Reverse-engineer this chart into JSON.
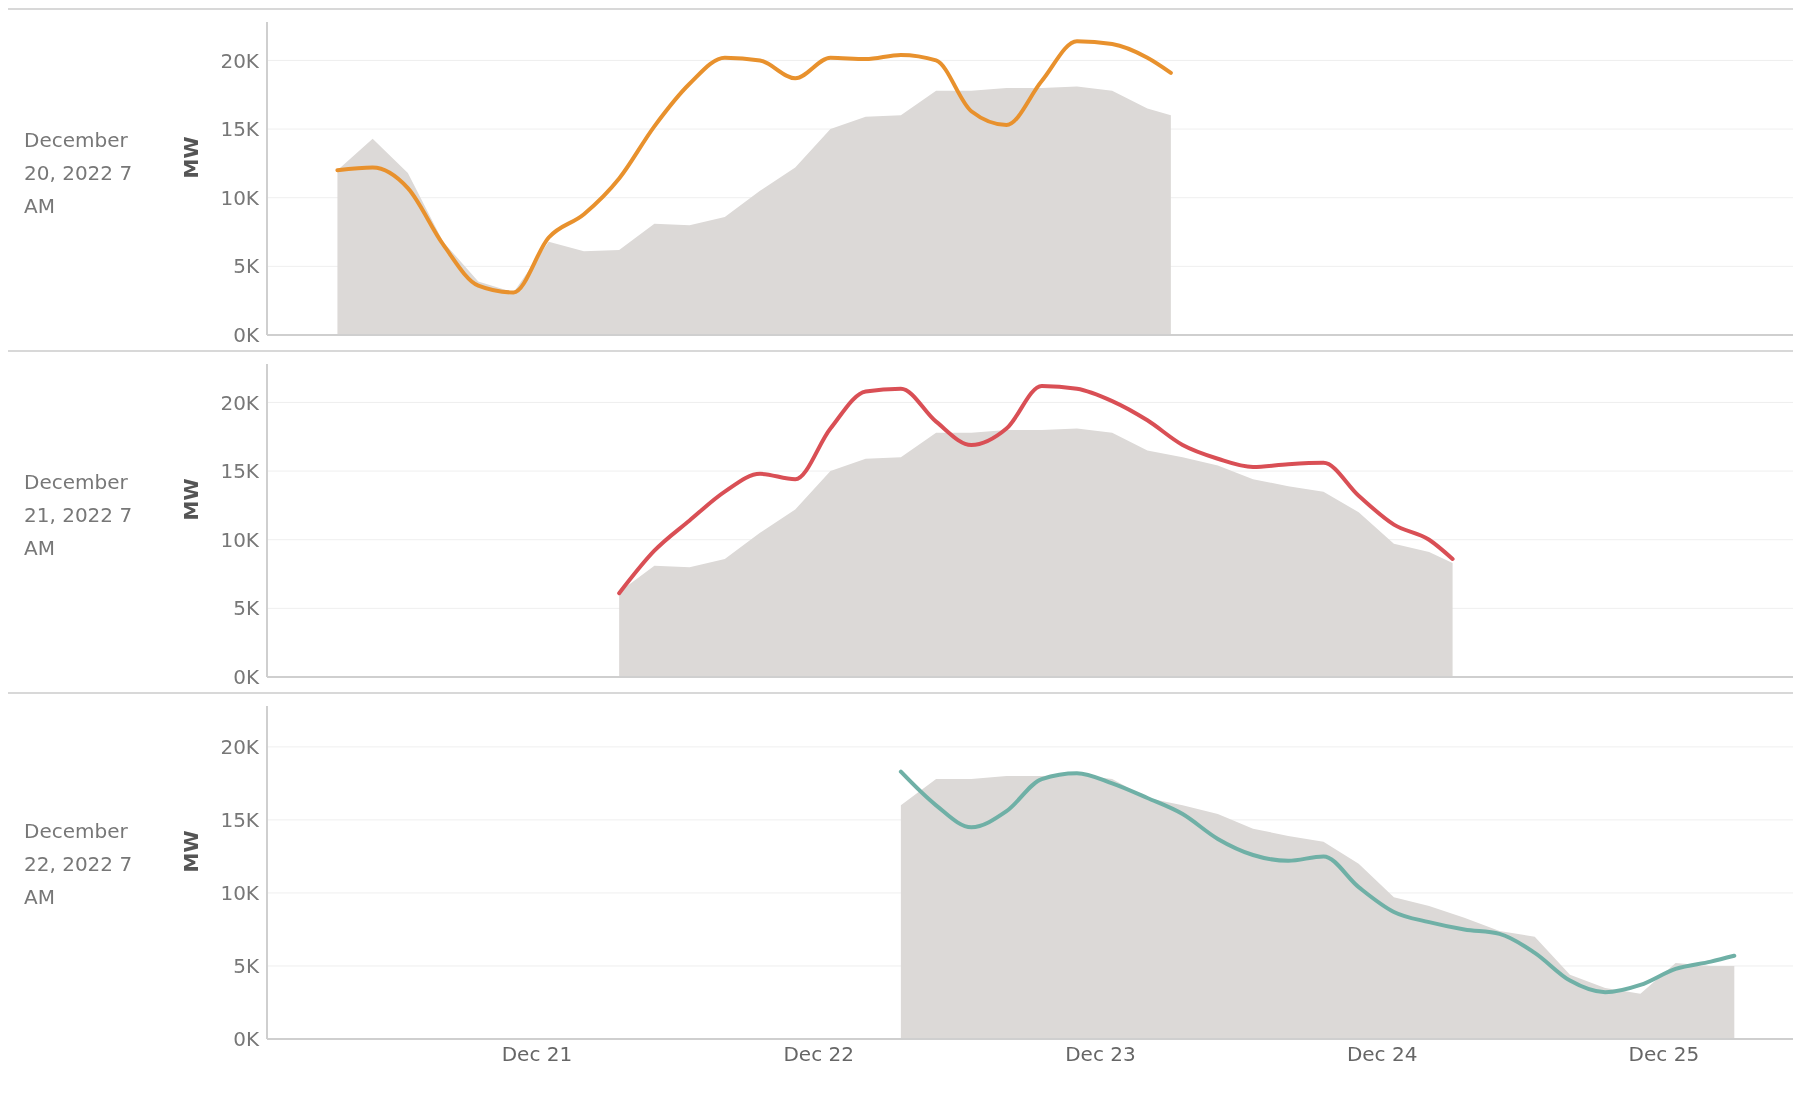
{
  "chart_data": [
    {
      "type": "line",
      "title": "December 20, 2022 7 AM",
      "ylabel": "MW",
      "grid": "y",
      "tick_labels": "y",
      "line_style": "solid",
      "marker": "none",
      "x": [
        "2022-12-20T07:00",
        "2022-12-20T10:00",
        "2022-12-20T13:00",
        "2022-12-20T16:00",
        "2022-12-20T19:00",
        "2022-12-20T22:00",
        "2022-12-21T01:00",
        "2022-12-21T04:00",
        "2022-12-21T07:00",
        "2022-12-21T10:00",
        "2022-12-21T13:00",
        "2022-12-21T16:00",
        "2022-12-21T19:00",
        "2022-12-21T22:00",
        "2022-12-22T01:00",
        "2022-12-22T04:00",
        "2022-12-22T07:00",
        "2022-12-22T10:00",
        "2022-12-22T13:00",
        "2022-12-22T16:00",
        "2022-12-22T19:00",
        "2022-12-22T22:00",
        "2022-12-23T01:00",
        "2022-12-23T04:00",
        "2022-12-23T06:00"
      ],
      "series": [
        {
          "type": "area",
          "color": "#dcd9d7",
          "values": [
            12000,
            14300,
            11800,
            6800,
            3900,
            3100,
            6800,
            6100,
            6200,
            8100,
            8000,
            8600,
            10500,
            12200,
            15000,
            15900,
            16000,
            17800,
            17800,
            18000,
            18000,
            18100,
            17800,
            16500,
            16000
          ]
        },
        {
          "type": "line",
          "color": "#e8912d",
          "values": [
            12000,
            12200,
            10700,
            6600,
            3600,
            3100,
            7100,
            8800,
            11400,
            15200,
            18300,
            20200,
            20000,
            18700,
            20200,
            20100,
            20400,
            20000,
            16300,
            15300,
            18500,
            21400,
            21200,
            20200,
            19100
          ]
        }
      ],
      "xlim": [
        "2022-12-20T01:00",
        "2022-12-25T11:00"
      ],
      "ylim": [
        0,
        22800
      ],
      "yticks": [
        {
          "value": 0,
          "label": "0K"
        },
        {
          "value": 5000,
          "label": "5K"
        },
        {
          "value": 10000,
          "label": "10K"
        },
        {
          "value": 15000,
          "label": "15K"
        },
        {
          "value": 20000,
          "label": "20K"
        }
      ]
    },
    {
      "type": "line",
      "title": "December 21, 2022 7 AM",
      "ylabel": "MW",
      "grid": "y",
      "tick_labels": "y",
      "line_style": "solid",
      "marker": "none",
      "x": [
        "2022-12-21T07:00",
        "2022-12-21T10:00",
        "2022-12-21T13:00",
        "2022-12-21T16:00",
        "2022-12-21T19:00",
        "2022-12-21T22:00",
        "2022-12-22T01:00",
        "2022-12-22T04:00",
        "2022-12-22T07:00",
        "2022-12-22T10:00",
        "2022-12-22T13:00",
        "2022-12-22T16:00",
        "2022-12-22T19:00",
        "2022-12-22T22:00",
        "2022-12-23T01:00",
        "2022-12-23T04:00",
        "2022-12-23T07:00",
        "2022-12-23T10:00",
        "2022-12-23T13:00",
        "2022-12-23T16:00",
        "2022-12-23T19:00",
        "2022-12-23T22:00",
        "2022-12-24T01:00",
        "2022-12-24T04:00",
        "2022-12-24T06:00"
      ],
      "series": [
        {
          "type": "area",
          "color": "#dcd9d7",
          "values": [
            6200,
            8100,
            8000,
            8600,
            10500,
            12200,
            15000,
            15900,
            16000,
            17800,
            17800,
            18000,
            18000,
            18100,
            17800,
            16500,
            16000,
            15400,
            14400,
            13900,
            13500,
            12000,
            9700,
            9100,
            8300
          ]
        },
        {
          "type": "line",
          "color": "#d94f55",
          "values": [
            6100,
            9200,
            11400,
            13500,
            14800,
            14400,
            18100,
            20800,
            21000,
            18600,
            16900,
            18100,
            21200,
            21000,
            20100,
            18700,
            16900,
            15900,
            15300,
            15500,
            15600,
            13200,
            11100,
            10000,
            8600
          ]
        }
      ],
      "xlim": [
        "2022-12-20T01:00",
        "2022-12-25T11:00"
      ],
      "ylim": [
        0,
        22800
      ],
      "yticks": [
        {
          "value": 0,
          "label": "0K"
        },
        {
          "value": 5000,
          "label": "5K"
        },
        {
          "value": 10000,
          "label": "10K"
        },
        {
          "value": 15000,
          "label": "15K"
        },
        {
          "value": 20000,
          "label": "20K"
        }
      ]
    },
    {
      "type": "line",
      "title": "December 22, 2022 7 AM",
      "ylabel": "MW",
      "grid": "y",
      "line_style": "solid",
      "marker": "none",
      "x": [
        "2022-12-22T07:00",
        "2022-12-22T10:00",
        "2022-12-22T13:00",
        "2022-12-22T16:00",
        "2022-12-22T19:00",
        "2022-12-22T22:00",
        "2022-12-23T01:00",
        "2022-12-23T04:00",
        "2022-12-23T07:00",
        "2022-12-23T10:00",
        "2022-12-23T13:00",
        "2022-12-23T16:00",
        "2022-12-23T19:00",
        "2022-12-23T22:00",
        "2022-12-24T01:00",
        "2022-12-24T04:00",
        "2022-12-24T07:00",
        "2022-12-24T10:00",
        "2022-12-24T13:00",
        "2022-12-24T16:00",
        "2022-12-24T19:00",
        "2022-12-24T22:00",
        "2022-12-25T01:00",
        "2022-12-25T04:00",
        "2022-12-25T06:00"
      ],
      "series": [
        {
          "type": "area",
          "color": "#dcd9d7",
          "values": [
            16000,
            17800,
            17800,
            18000,
            18000,
            18100,
            17800,
            16500,
            16000,
            15400,
            14400,
            13900,
            13500,
            12000,
            9700,
            9100,
            8300,
            7400,
            7000,
            4400,
            3500,
            3100,
            5200,
            5000,
            5000
          ]
        },
        {
          "type": "line",
          "color": "#6fb0a6",
          "values": [
            18300,
            16000,
            14500,
            15600,
            17800,
            18200,
            17500,
            16500,
            15400,
            13700,
            12600,
            12200,
            12500,
            10400,
            8700,
            8000,
            7500,
            7200,
            5900,
            4000,
            3200,
            3700,
            4800,
            5300,
            5700
          ]
        }
      ],
      "xlim": [
        "2022-12-20T01:00",
        "2022-12-25T11:00"
      ],
      "xticks": [
        {
          "value": "2022-12-21",
          "label": "Dec 21"
        },
        {
          "value": "2022-12-22",
          "label": "Dec 22"
        },
        {
          "value": "2022-12-23",
          "label": "Dec 23"
        },
        {
          "value": "2022-12-24",
          "label": "Dec 24"
        },
        {
          "value": "2022-12-25",
          "label": "Dec 25"
        }
      ],
      "ylim": [
        0,
        22800
      ],
      "yticks": [
        {
          "value": 0,
          "label": "0K"
        },
        {
          "value": 5000,
          "label": "5K"
        },
        {
          "value": 10000,
          "label": "10K"
        },
        {
          "value": 15000,
          "label": "15K"
        },
        {
          "value": 20000,
          "label": "20K"
        }
      ]
    }
  ]
}
